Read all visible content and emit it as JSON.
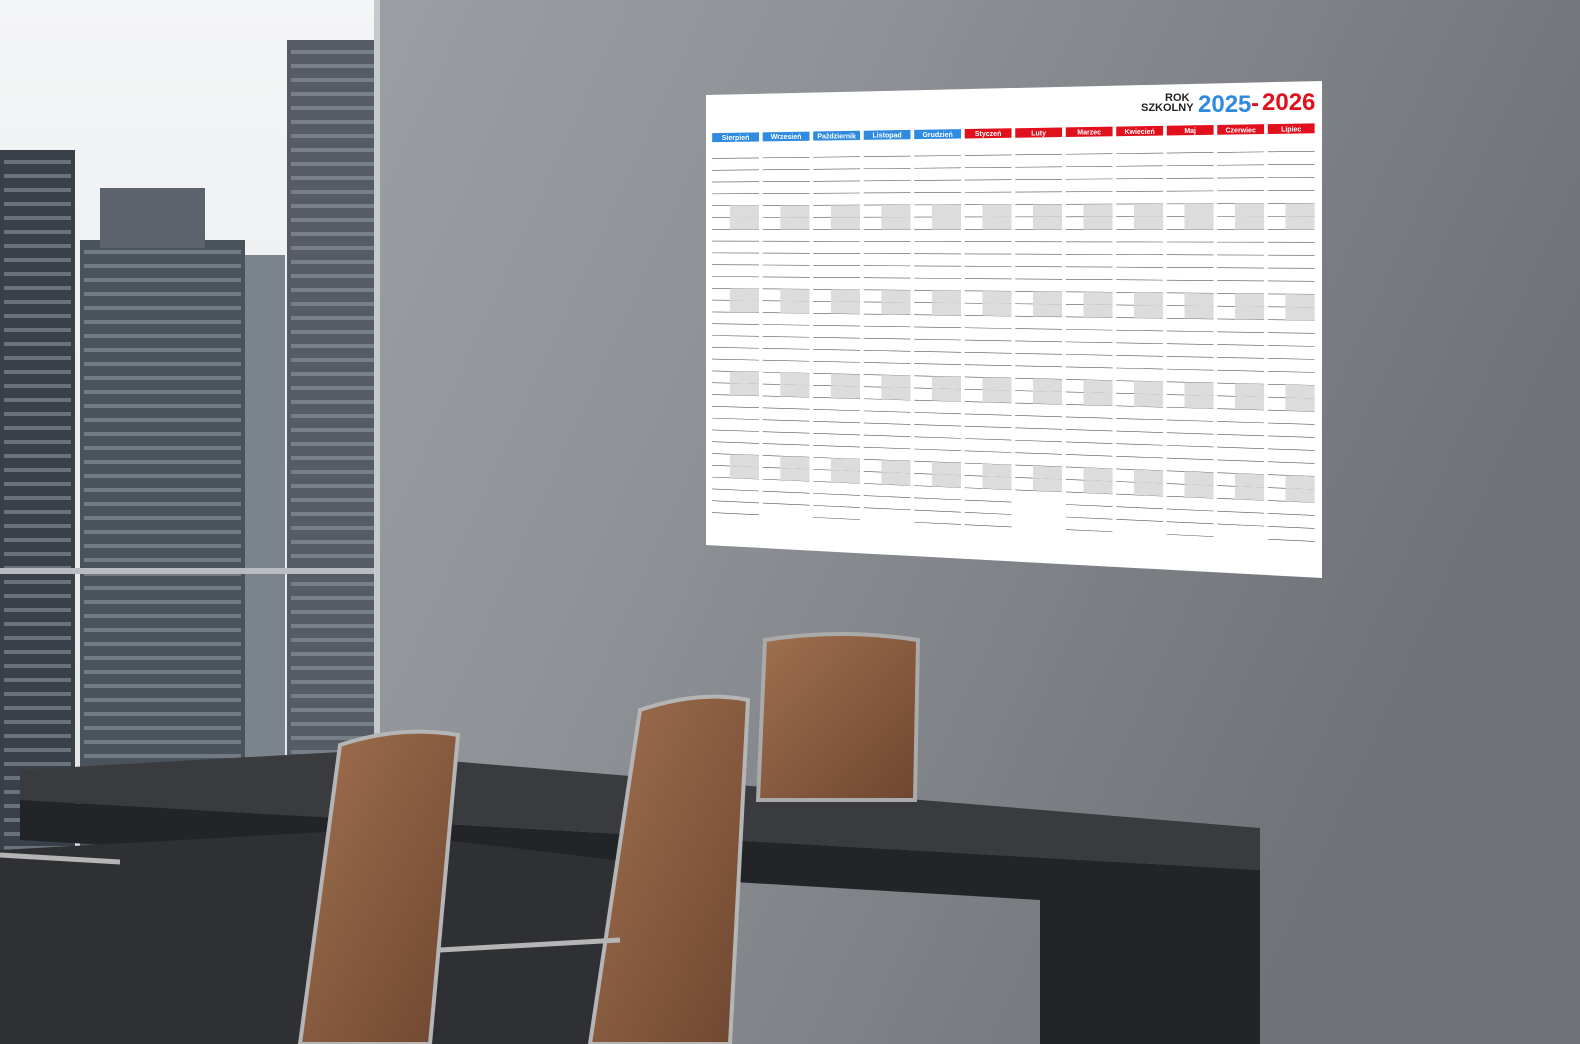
{
  "poster": {
    "title_line1": "ROK",
    "title_line2": "SZKOLNY",
    "year_start": "2025",
    "separator": "-",
    "year_end": "2026",
    "months": [
      {
        "label": "Sierpień",
        "color": "#2f8be0"
      },
      {
        "label": "Wrzesień",
        "color": "#2f8be0"
      },
      {
        "label": "Październik",
        "color": "#2f8be0"
      },
      {
        "label": "Listopad",
        "color": "#2f8be0"
      },
      {
        "label": "Grudzień",
        "color": "#2f8be0"
      },
      {
        "label": "Styczeń",
        "color": "#e0101c"
      },
      {
        "label": "Luty",
        "color": "#e0101c"
      },
      {
        "label": "Marzec",
        "color": "#e0101c"
      },
      {
        "label": "Kwiecień",
        "color": "#e0101c"
      },
      {
        "label": "Maj",
        "color": "#e0101c"
      },
      {
        "label": "Czerwiec",
        "color": "#e0101c"
      },
      {
        "label": "Lipiec",
        "color": "#e0101c"
      }
    ],
    "days_in_month": [
      31,
      30,
      31,
      30,
      31,
      31,
      28,
      31,
      30,
      31,
      30,
      31
    ]
  },
  "colors": {
    "blue": "#2f8be0",
    "red": "#e0101c",
    "wall": "#8e9297",
    "desk": "#2b2c2f",
    "chair": "#8a5c3e"
  }
}
